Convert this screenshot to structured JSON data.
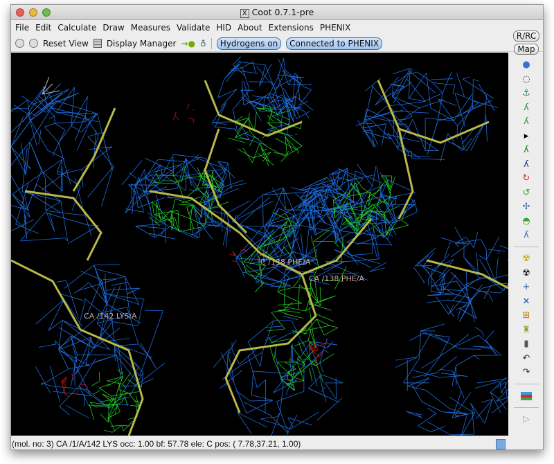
{
  "window": {
    "title": "Coot 0.7.1-pre"
  },
  "menu": [
    "File",
    "Edit",
    "Calculate",
    "Draw",
    "Measures",
    "Validate",
    "HID",
    "About",
    "Extensions",
    "PHENIX"
  ],
  "toolbar": {
    "reset_view": "Reset View",
    "display_manager": "Display Manager",
    "hydrogens": "Hydrogens on",
    "phenix": "Connected to PHENIX"
  },
  "right_toolbar": {
    "rrc": "R/RC",
    "map": "Map",
    "icons": [
      "refine-sphere-icon",
      "rotate-icon",
      "anchor-icon",
      "rotamer-green-icon",
      "chain-icon",
      "arrow-right-icon",
      "fit-residue-icon",
      "backbone-icon",
      "rotate-translate-icon",
      "rotate-zone-icon",
      "flip-peptide-icon",
      "side-chain-icon",
      "edit-chi-icon"
    ],
    "icons2": [
      "radiation-small-icon",
      "radiation-icon",
      "add-atom-icon",
      "add-terminal-icon",
      "add-box-icon",
      "stamp-icon",
      "delete-icon",
      "undo-icon",
      "redo-icon"
    ],
    "flag": "flag-icon"
  },
  "viewport": {
    "labels": [
      "CA /142 LYS/A",
      "C /138 PHE/A",
      "CA /138 PHE/A"
    ],
    "colors": {
      "map": "#1f6fe0",
      "diff_pos": "#22cc22",
      "diff_neg": "#cc1111",
      "bonds": "#b8b84a",
      "background": "#000000"
    }
  },
  "status": "(mol. no: 3)  CA /1/A/142 LYS occ:  1.00 bf: 57.78 ele:  C pos: ( 7.78,37.21, 1.00)"
}
